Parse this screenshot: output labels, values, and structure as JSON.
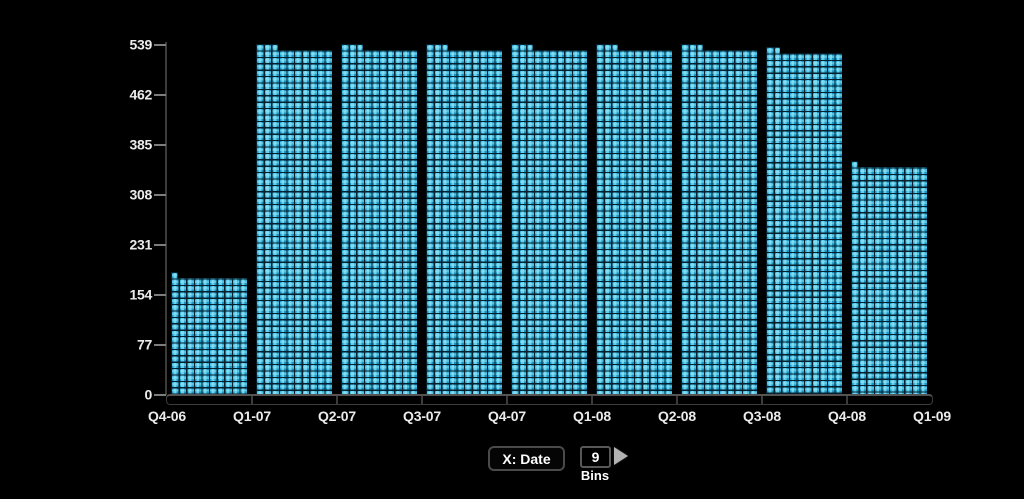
{
  "window": {
    "background": "#000000"
  },
  "colors": {
    "bg": "#000000",
    "bar_base": "#1895c2",
    "bar_bright": "#96eeff",
    "bar_grid": "#07202e",
    "axis": "#3c3c3c",
    "tick": "#7d7d7d",
    "label": "#ebebeb",
    "control_text": "#ffffff",
    "arrow": "#b3b3b3"
  },
  "y_axis": {
    "labels": [
      "539",
      "462",
      "385",
      "308",
      "231",
      "154",
      "77",
      "0"
    ]
  },
  "x_axis": {
    "labels": [
      "Q4-06",
      "Q1-07",
      "Q2-07",
      "Q3-07",
      "Q4-07",
      "Q1-08",
      "Q2-08",
      "Q3-08",
      "Q4-08",
      "Q1-09"
    ]
  },
  "chart_data": {
    "type": "bar",
    "subtype": "histogram",
    "title": "",
    "xlabel": "Date",
    "ylabel": "",
    "x_field": "Date",
    "bins": 9,
    "bin_edges": [
      "Q4-06",
      "Q1-07",
      "Q2-07",
      "Q3-07",
      "Q4-07",
      "Q1-08",
      "Q2-08",
      "Q3-08",
      "Q4-08",
      "Q1-09"
    ],
    "values": [
      188,
      539,
      539,
      539,
      539,
      539,
      539,
      534,
      359
    ],
    "step_squares": [
      1,
      3,
      3,
      3,
      3,
      3,
      3,
      2,
      1
    ],
    "ylim": [
      0,
      539
    ],
    "y_ticks": [
      0,
      77,
      154,
      231,
      308,
      385,
      462,
      539
    ],
    "grid": false,
    "legend": null
  },
  "controls": {
    "x_button_label": "X: Date",
    "bins_value": "9",
    "bins_label": "Bins",
    "arrow_icon": "step-arrow-right"
  }
}
